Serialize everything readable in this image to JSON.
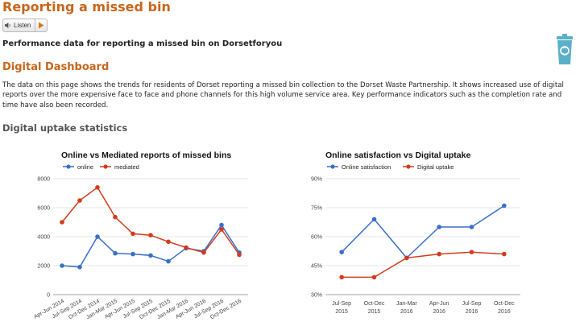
{
  "header": {
    "title": "Reporting a missed bin",
    "listen_label": "Listen",
    "subtitle": "Performance data for reporting a missed bin on Dorsetforyou"
  },
  "dashboard": {
    "title": "Digital Dashboard",
    "intro": "The data on this page shows the trends for residents of Dorset reporting a missed bin collection to the Dorset Waste Partnership. It shows increased use of digital reports over the more expensive face to face and phone channels for this high volume service area. Key performance indicators such as the completion rate and time have also been recorded.",
    "uptake_title": "Digital uptake statistics"
  },
  "colors": {
    "accent": "#c8651b",
    "series_blue": "#3a6fc6",
    "series_red": "#d13c1c",
    "bin_icon": "#5ab0c8"
  },
  "icons": {
    "listen": "speaker-icon",
    "play": "play-icon",
    "bin": "recycling-bin-icon"
  },
  "chart_data": [
    {
      "type": "line",
      "title": "Online vs Mediated reports of missed bins",
      "categories": [
        "Apr-Jun 2014",
        "Jul-Sep 2014",
        "Oct-Dec 2014",
        "Jan-Mar 2015",
        "Apr-Jun 2015",
        "Jul-Sep 2015",
        "Oct-Dec 2015",
        "Jan-Mar 2016",
        "Apr-Jun 2016",
        "Jul-Sep 2016",
        "Oct-Dec 2016"
      ],
      "series": [
        {
          "name": "online",
          "color": "#3a6fc6",
          "values": [
            2000,
            1900,
            4000,
            2850,
            2800,
            2700,
            2300,
            3200,
            3000,
            4800,
            2900
          ]
        },
        {
          "name": "mediated",
          "color": "#d13c1c",
          "values": [
            5000,
            6500,
            7400,
            5350,
            4200,
            4100,
            3650,
            3250,
            2900,
            4500,
            2750
          ]
        }
      ],
      "yticks": [
        "0",
        "2000",
        "4000",
        "6000",
        "8000"
      ],
      "ylim": [
        0,
        8000
      ],
      "legend": "top-left",
      "grid": true
    },
    {
      "type": "line",
      "title": "Online satisfaction vs Digital uptake",
      "categories": [
        "Jul-Sep 2015",
        "Oct-Dec 2015",
        "Jan-Mar 2016",
        "Apr-Jun 2016",
        "Jul-Sep 2016",
        "Oct-Dec 2016"
      ],
      "series": [
        {
          "name": "Online satisfaction",
          "color": "#3a6fc6",
          "values": [
            52,
            69,
            49,
            65,
            65,
            76
          ]
        },
        {
          "name": "Digital uptake",
          "color": "#d13c1c",
          "values": [
            39,
            39,
            49,
            51,
            52,
            51
          ]
        }
      ],
      "yticks": [
        "30%",
        "45%",
        "60%",
        "75%",
        "90%"
      ],
      "ylim": [
        30,
        90
      ],
      "legend": "top-left",
      "grid": true
    }
  ]
}
